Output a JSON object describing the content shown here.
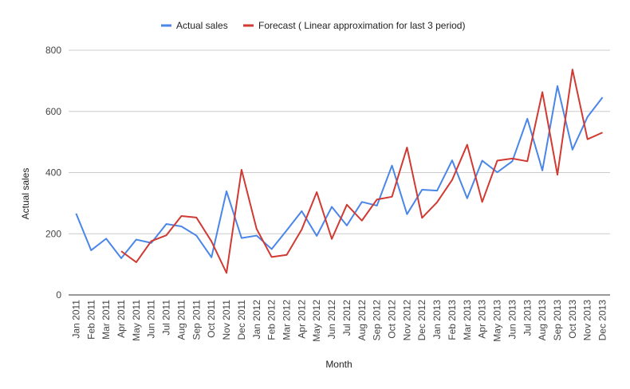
{
  "chart_data": {
    "type": "line",
    "xlabel": "Month",
    "ylabel": "Actual sales",
    "ylim": [
      0,
      800
    ],
    "yticks": [
      0,
      200,
      400,
      600,
      800
    ],
    "grid": true,
    "legend_position": "top",
    "categories": [
      "Jan 2011",
      "Feb 2011",
      "Mar 2011",
      "Apr 2011",
      "May 2011",
      "Jun 2011",
      "Jul 2011",
      "Aug 2011",
      "Sep 2011",
      "Oct 2011",
      "Nov 2011",
      "Dec 2011",
      "Jan 2012",
      "Feb 2012",
      "Mar 2012",
      "Apr 2012",
      "May 2012",
      "Jun 2012",
      "Jul 2012",
      "Aug 2012",
      "Sep 2012",
      "Oct 2012",
      "Nov 2012",
      "Dec 2012",
      "Jan 2013",
      "Feb 2013",
      "Mar 2013",
      "Apr 2013",
      "May 2013",
      "Jun 2013",
      "Jul 2013",
      "Aug 2013",
      "Sep 2013",
      "Oct 2013",
      "Nov 2013",
      "Dec 2013"
    ],
    "series": [
      {
        "name": "Actual sales",
        "color": "#4a86e8",
        "values": [
          266,
          146,
          184,
          120,
          181,
          170,
          232,
          224,
          194,
          123,
          339,
          186,
          194,
          150,
          211,
          274,
          193,
          288,
          227,
          304,
          292,
          423,
          264,
          344,
          341,
          440,
          316,
          439,
          401,
          437,
          576,
          407,
          683,
          475,
          582,
          646
        ]
      },
      {
        "name": "Forecast ( Linear approximation for last 3 period)",
        "color": "#d03a32",
        "values": [
          null,
          null,
          null,
          143,
          107,
          176,
          195,
          258,
          253,
          175,
          72,
          409,
          216,
          124,
          131,
          214,
          336,
          183,
          295,
          243,
          312,
          321,
          482,
          252,
          303,
          376,
          491,
          304,
          439,
          446,
          437,
          663,
          393,
          737,
          509,
          531
        ]
      }
    ]
  }
}
